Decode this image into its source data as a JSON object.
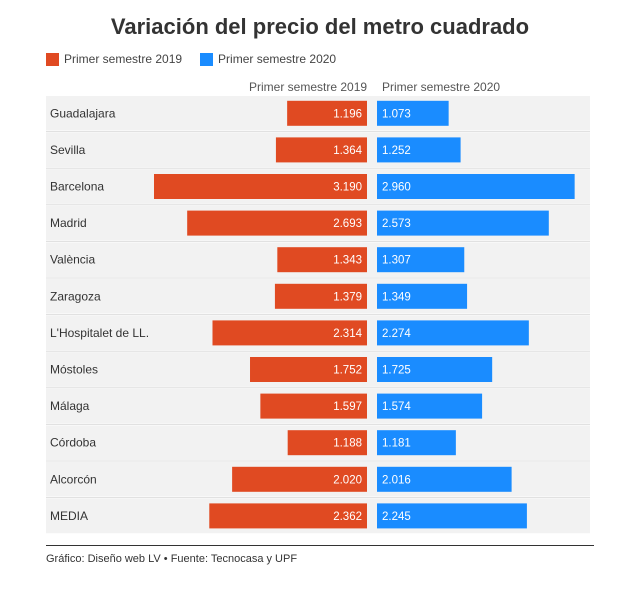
{
  "chart_data": {
    "type": "bar",
    "title": "Variación del precio del metro cuadrado",
    "categories": [
      "Guadalajara",
      "Sevilla",
      "Barcelona",
      "Madrid",
      "València",
      "Zaragoza",
      "L'Hospitalet de LL.",
      "Móstoles",
      "Málaga",
      "Córdoba",
      "Alcorcón",
      "MEDIA"
    ],
    "series": [
      {
        "name": "Primer semestre 2019",
        "values": [
          1196,
          1364,
          3190,
          2693,
          1343,
          1379,
          2314,
          1752,
          1597,
          1188,
          2020,
          2362
        ],
        "labels": [
          "1.196",
          "1.364",
          "3.190",
          "2.693",
          "1.343",
          "1.379",
          "2.314",
          "1.752",
          "1.597",
          "1.188",
          "2.020",
          "2.362"
        ],
        "color": "#e04a22"
      },
      {
        "name": "Primer semestre 2020",
        "values": [
          1073,
          1252,
          2960,
          2573,
          1307,
          1349,
          2274,
          1725,
          1574,
          1181,
          2016,
          2245
        ],
        "labels": [
          "1.073",
          "1.252",
          "2.960",
          "2.573",
          "1.307",
          "1.349",
          "2.274",
          "1.725",
          "1.574",
          "1.181",
          "2.016",
          "2.245"
        ],
        "color": "#1a8cff"
      }
    ],
    "xlim": [
      0,
      3190
    ],
    "legend_position": "top-left",
    "grid": false
  },
  "colors": {
    "row_background": "#f2f2f2",
    "separator": "#dddddd"
  },
  "footer": "Gráfico: Diseño web LV • Fuente: Tecnocasa y UPF"
}
